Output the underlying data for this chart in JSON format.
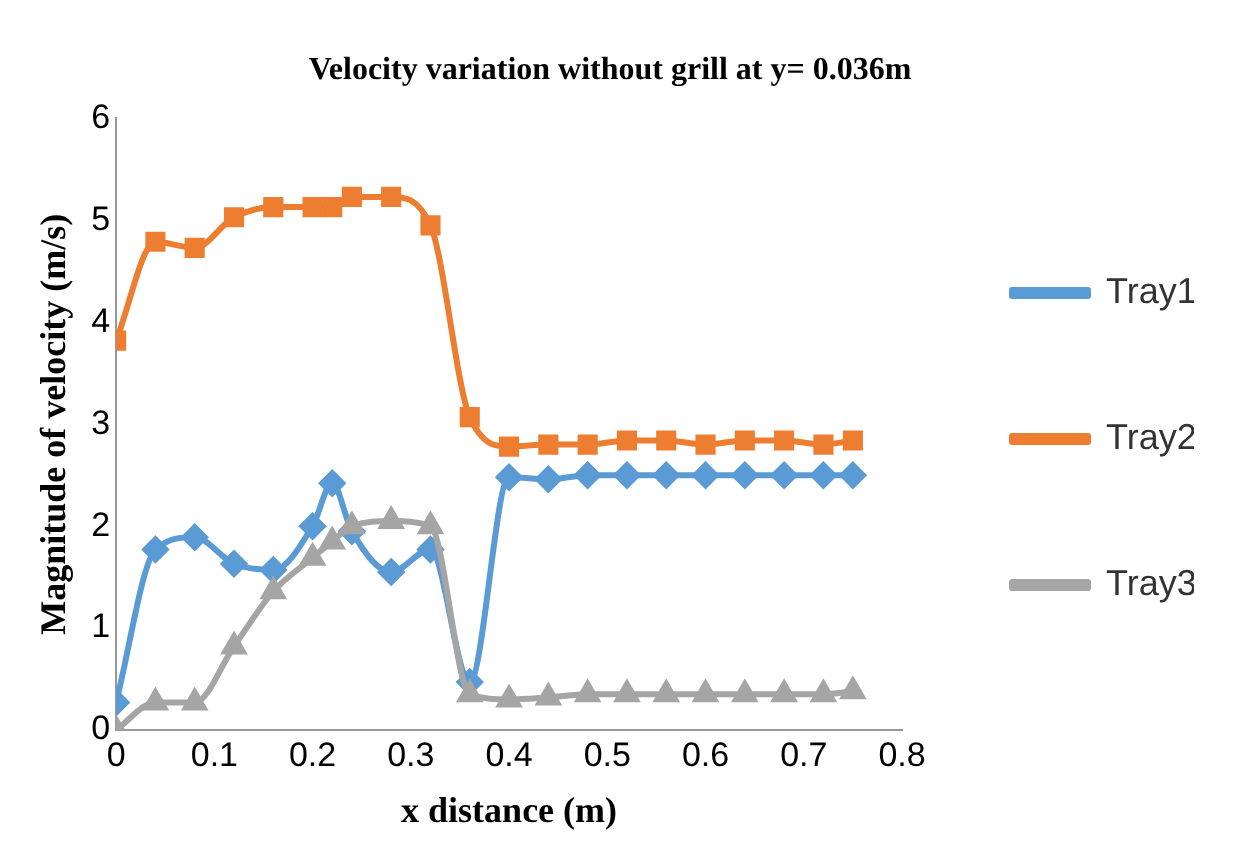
{
  "chart_data": {
    "type": "line",
    "title": "Velocity variation without grill at y= 0.036m",
    "xlabel": "x distance (m)",
    "ylabel": "Magnitude of velocity (m/s)",
    "x": [
      0,
      0.04,
      0.08,
      0.12,
      0.16,
      0.2,
      0.22,
      0.24,
      0.28,
      0.32,
      0.36,
      0.4,
      0.44,
      0.48,
      0.52,
      0.56,
      0.6,
      0.64,
      0.68,
      0.72,
      0.75
    ],
    "series": [
      {
        "name": "Tray1",
        "color": "#5b9bd5",
        "marker": "diamond",
        "values": [
          0.27,
          1.77,
          1.89,
          1.63,
          1.57,
          2.0,
          2.42,
          1.95,
          1.55,
          1.77,
          0.47,
          2.48,
          2.46,
          2.5,
          2.5,
          2.5,
          2.5,
          2.5,
          2.5,
          2.5,
          2.5
        ]
      },
      {
        "name": "Tray2",
        "color": "#ed7d31",
        "marker": "square",
        "values": [
          3.82,
          4.79,
          4.73,
          5.03,
          5.13,
          5.13,
          5.13,
          5.23,
          5.23,
          4.95,
          3.07,
          2.78,
          2.8,
          2.8,
          2.84,
          2.84,
          2.8,
          2.84,
          2.84,
          2.8,
          2.84
        ]
      },
      {
        "name": "Tray3",
        "color": "#a5a5a5",
        "marker": "triangle",
        "values": [
          0,
          0.27,
          0.27,
          0.82,
          1.36,
          1.69,
          1.85,
          2.0,
          2.05,
          2.0,
          0.35,
          0.3,
          0.32,
          0.35,
          0.35,
          0.35,
          0.35,
          0.35,
          0.35,
          0.35,
          0.38
        ]
      }
    ],
    "xlim": [
      0,
      0.8
    ],
    "xticks": [
      0,
      0.1,
      0.2,
      0.3,
      0.4,
      0.5,
      0.6,
      0.7,
      0.8
    ],
    "ylim": [
      0,
      6
    ],
    "yticks": [
      0,
      1,
      2,
      3,
      4,
      5,
      6
    ],
    "grid": false,
    "legend": "right"
  }
}
